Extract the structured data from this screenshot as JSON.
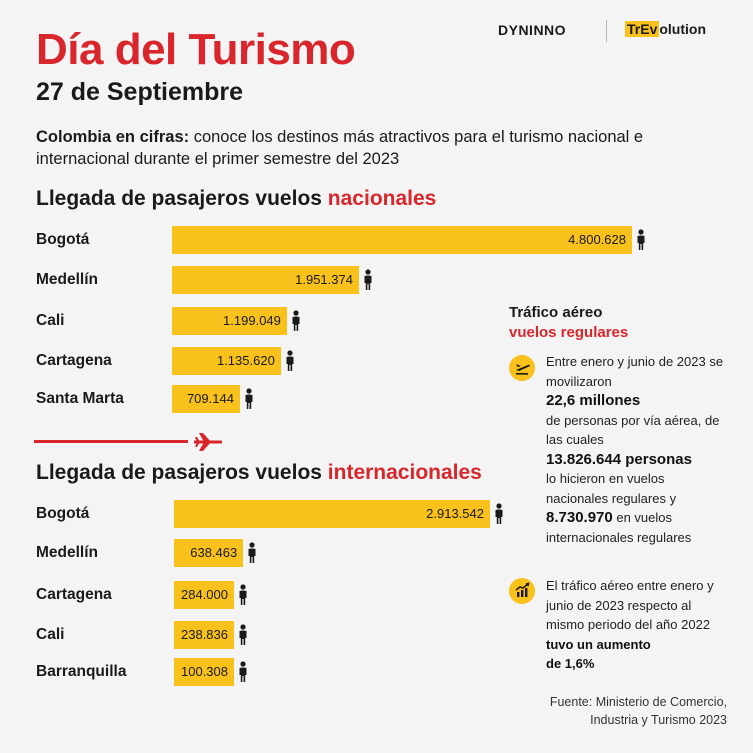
{
  "header": {
    "title": "Día del Turismo",
    "date": "27 de Septiembre",
    "logos": {
      "left": "DYNINNO",
      "right_highlight": "TrEv",
      "right_rest": "olution"
    },
    "intro_bold": "Colombia en cifras:",
    "intro_rest": " conoce los destinos más atractivos para el turismo nacional e internacional durante el primer semestre del 2023"
  },
  "national": {
    "title_black": "Llegada de pasajeros vuelos ",
    "title_red": "nacionales"
  },
  "international": {
    "title_black": "Llegada de pasajeros vuelos ",
    "title_red": "internacionales"
  },
  "traffic": {
    "title_line1": "Tráfico aéreo",
    "title_line2": "vuelos regulares",
    "note1": {
      "t1": "Entre enero y junio de 2023 se movilizaron",
      "b1": "22,6 millones",
      "t2": "de personas por vía aérea, de las cuales",
      "b2": "13.826.644 personas",
      "t3": "lo hicieron en vuelos nacionales regulares y",
      "b3": "8.730.970",
      "t4": " en vuelos internacionales regulares"
    },
    "note2": {
      "t1": "El tráfico aéreo entre enero y junio de 2023 respecto al mismo periodo del año 2022",
      "b1": " tuvo un aumento",
      "b2": "de 1,6%"
    }
  },
  "source": {
    "line1": "Fuente: Ministerio de Comercio,",
    "line2": "Industria y Turismo 2023"
  },
  "colors": {
    "accent_red": "#d8262c",
    "bar_yellow": "#f8c11b",
    "background": "#f4f4f4"
  },
  "icons": [
    "person-icon",
    "airplane-icon",
    "plane-departure-icon",
    "growth-chart-icon"
  ],
  "chart_data": [
    {
      "type": "bar",
      "orientation": "horizontal",
      "categories": [
        "Bogotá",
        "Medellín",
        "Cali",
        "Cartagena",
        "Santa Marta"
      ],
      "values": [
        4800628,
        1951374,
        1199049,
        1135620,
        709144
      ],
      "labels": [
        "4.800.628",
        "1.951.374",
        "1.199.049",
        "1.135.620",
        "709.144"
      ]
    },
    {
      "type": "bar",
      "orientation": "horizontal",
      "categories": [
        "Bogotá",
        "Medellín",
        "Cartagena",
        "Cali",
        "Barranquilla"
      ],
      "values": [
        2913542,
        638463,
        284000,
        238836,
        100308
      ],
      "labels": [
        "2.913.542",
        "638.463",
        "284.000",
        "238.836",
        "100.308"
      ]
    }
  ]
}
